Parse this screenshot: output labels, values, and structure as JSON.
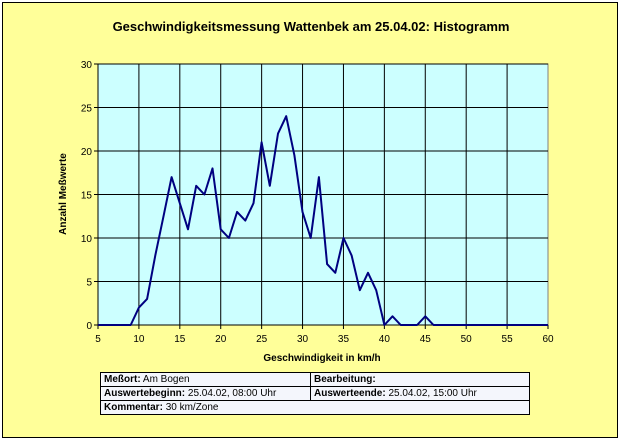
{
  "chart_data": {
    "type": "line",
    "title": "Geschwindigkeitsmessung Wattenbek am 25.04.02: Histogramm",
    "xlabel": "Geschwindigkeit in km/h",
    "ylabel": "Anzahl Meßwerte",
    "xlim": [
      5,
      60
    ],
    "ylim": [
      0,
      30
    ],
    "xticks": [
      5,
      10,
      15,
      20,
      25,
      30,
      35,
      40,
      45,
      50,
      55,
      60
    ],
    "yticks": [
      0,
      5,
      10,
      15,
      20,
      25,
      30
    ],
    "grid": true,
    "plot_bg": "#ccffff",
    "line_color": "#000080",
    "series": [
      {
        "x": [
          5,
          6,
          7,
          8,
          9,
          10,
          11,
          12,
          13,
          14,
          15,
          16,
          17,
          18,
          19,
          20,
          21,
          22,
          23,
          24,
          25,
          26,
          27,
          28,
          29,
          30,
          31,
          32,
          33,
          34,
          35,
          36,
          37,
          38,
          39,
          40,
          41,
          42,
          43,
          44,
          45,
          46,
          47,
          48,
          49,
          50,
          51,
          52,
          53,
          54,
          55,
          56,
          57,
          58,
          59,
          60
        ],
        "values": [
          0,
          0,
          0,
          0,
          0,
          2,
          3,
          8,
          12.5,
          17,
          14,
          11,
          16,
          15,
          18,
          11,
          10,
          13,
          12,
          14,
          21,
          16,
          22,
          24,
          19.5,
          13,
          10,
          17,
          7,
          6,
          10,
          8,
          4,
          6,
          4,
          0,
          1,
          0,
          0,
          0,
          1,
          0,
          0,
          0,
          0,
          0,
          0,
          0,
          0,
          0,
          0,
          0,
          0,
          0,
          0,
          0
        ]
      }
    ]
  },
  "info": {
    "messort_label": "Meßort:",
    "messort_value": "Am Bogen",
    "bearbeitung_label": "Bearbeitung:",
    "bearbeitung_value": "",
    "beginn_label": "Auswertebeginn:",
    "beginn_value": "25.04.02, 08:00 Uhr",
    "ende_label": "Auswerteende:",
    "ende_value": "25.04.02, 15:00 Uhr",
    "kommentar_label": "Kommentar:",
    "kommentar_value": "30 km/Zone"
  }
}
